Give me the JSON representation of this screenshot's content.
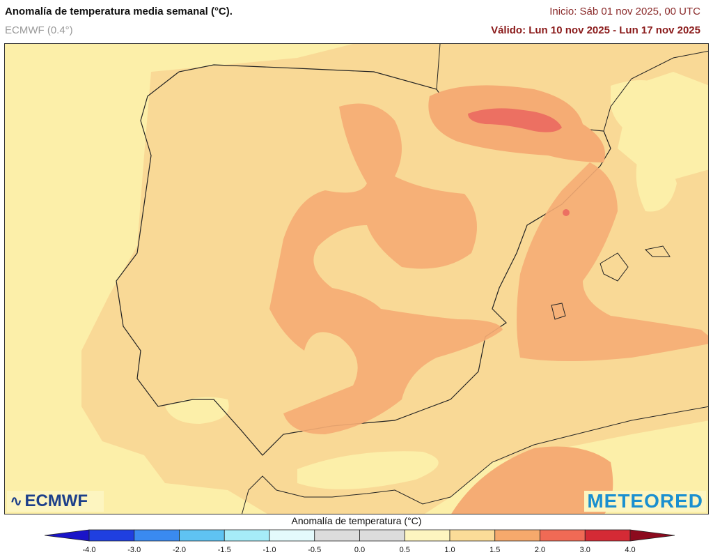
{
  "header": {
    "title": "Anomalía de temperatura media semanal (°C).",
    "model": "ECMWF (0.4°)",
    "init": "Inicio: Sáb 01 nov 2025, 00 UTC",
    "valid": "Válido: Lun 10 nov 2025 - Lun 17 nov 2025"
  },
  "logos": {
    "left": "ECMWF",
    "right": "METEORED"
  },
  "colorbar": {
    "title": "Anomalía de temperatura (°C)",
    "ticks": [
      "-4.0",
      "-3.0",
      "-2.0",
      "-1.5",
      "-1.0",
      "-0.5",
      "0.0",
      "0.5",
      "1.0",
      "1.5",
      "2.0",
      "3.0",
      "4.0"
    ],
    "under_color": "#1a14c8",
    "over_color": "#8c0a1e",
    "colors": [
      "#1f3fe0",
      "#3a8af0",
      "#5fc3f2",
      "#a6ecf8",
      "#e4fafc",
      "#dcdcdc",
      "#dcdcdc",
      "#fdf5c0",
      "#fbdc98",
      "#f6a96c",
      "#f06a55",
      "#d42a35"
    ]
  },
  "map": {
    "region": "Península Ibérica",
    "field_colors": {
      "0.5-1.0": "#fcefa9",
      "1.0-1.5": "#f9d996",
      "1.5-2.0": "#f5ac74",
      "2.0-3.0": "#ec7062"
    }
  }
}
